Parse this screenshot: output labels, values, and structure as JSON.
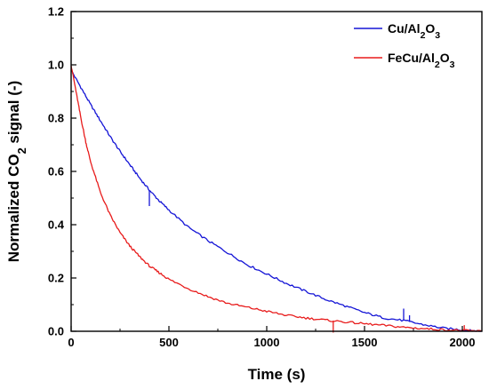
{
  "chart_data": {
    "type": "line",
    "xlabel": "Time (s)",
    "ylabel": "Normalized CO2 signal (-)",
    "xlim": [
      0,
      2100
    ],
    "ylim": [
      0,
      1.2
    ],
    "xticks": [
      "0",
      "500",
      "1000",
      "1500",
      "2000"
    ],
    "yticks": [
      "0.0",
      "0.2",
      "0.4",
      "0.6",
      "0.8",
      "1.0",
      "1.2"
    ],
    "grid": false,
    "legend_position": "top-right",
    "series": [
      {
        "name": "Cu/Al2O3",
        "color": "#1515d6",
        "x": [
          0,
          50,
          100,
          150,
          200,
          250,
          300,
          350,
          400,
          450,
          500,
          600,
          700,
          800,
          900,
          1000,
          1100,
          1200,
          1300,
          1400,
          1500,
          1600,
          1700,
          1800,
          1900,
          2000,
          2050,
          2100
        ],
        "y": [
          0.98,
          0.915,
          0.85,
          0.79,
          0.73,
          0.675,
          0.625,
          0.575,
          0.53,
          0.49,
          0.455,
          0.39,
          0.34,
          0.295,
          0.25,
          0.215,
          0.18,
          0.15,
          0.12,
          0.095,
          0.07,
          0.05,
          0.04,
          0.025,
          0.012,
          0.005,
          0.002,
          0.0
        ]
      },
      {
        "name": "FeCu/Al2O3",
        "color": "#e81c1c",
        "x": [
          0,
          25,
          50,
          75,
          100,
          150,
          200,
          250,
          300,
          350,
          400,
          450,
          500,
          600,
          700,
          800,
          900,
          1000,
          1100,
          1200,
          1300,
          1400,
          1500,
          1600,
          1700,
          1800,
          1900,
          2000,
          2100
        ],
        "y": [
          1.0,
          0.9,
          0.8,
          0.71,
          0.635,
          0.52,
          0.435,
          0.37,
          0.32,
          0.28,
          0.245,
          0.22,
          0.195,
          0.16,
          0.13,
          0.105,
          0.09,
          0.075,
          0.06,
          0.05,
          0.042,
          0.035,
          0.028,
          0.022,
          0.015,
          0.01,
          0.006,
          0.003,
          0.0
        ]
      }
    ],
    "spikes": [
      {
        "series": 0,
        "x": 400,
        "y": 0.53,
        "dy": -0.06
      },
      {
        "series": 0,
        "x": 1700,
        "y": 0.04,
        "dy": 0.045
      },
      {
        "series": 0,
        "x": 1730,
        "y": 0.035,
        "dy": 0.025
      },
      {
        "series": 1,
        "x": 1340,
        "y": 0.04,
        "dy": -0.045
      },
      {
        "series": 1,
        "x": 2010,
        "y": 0.003,
        "dy": 0.02
      }
    ]
  }
}
